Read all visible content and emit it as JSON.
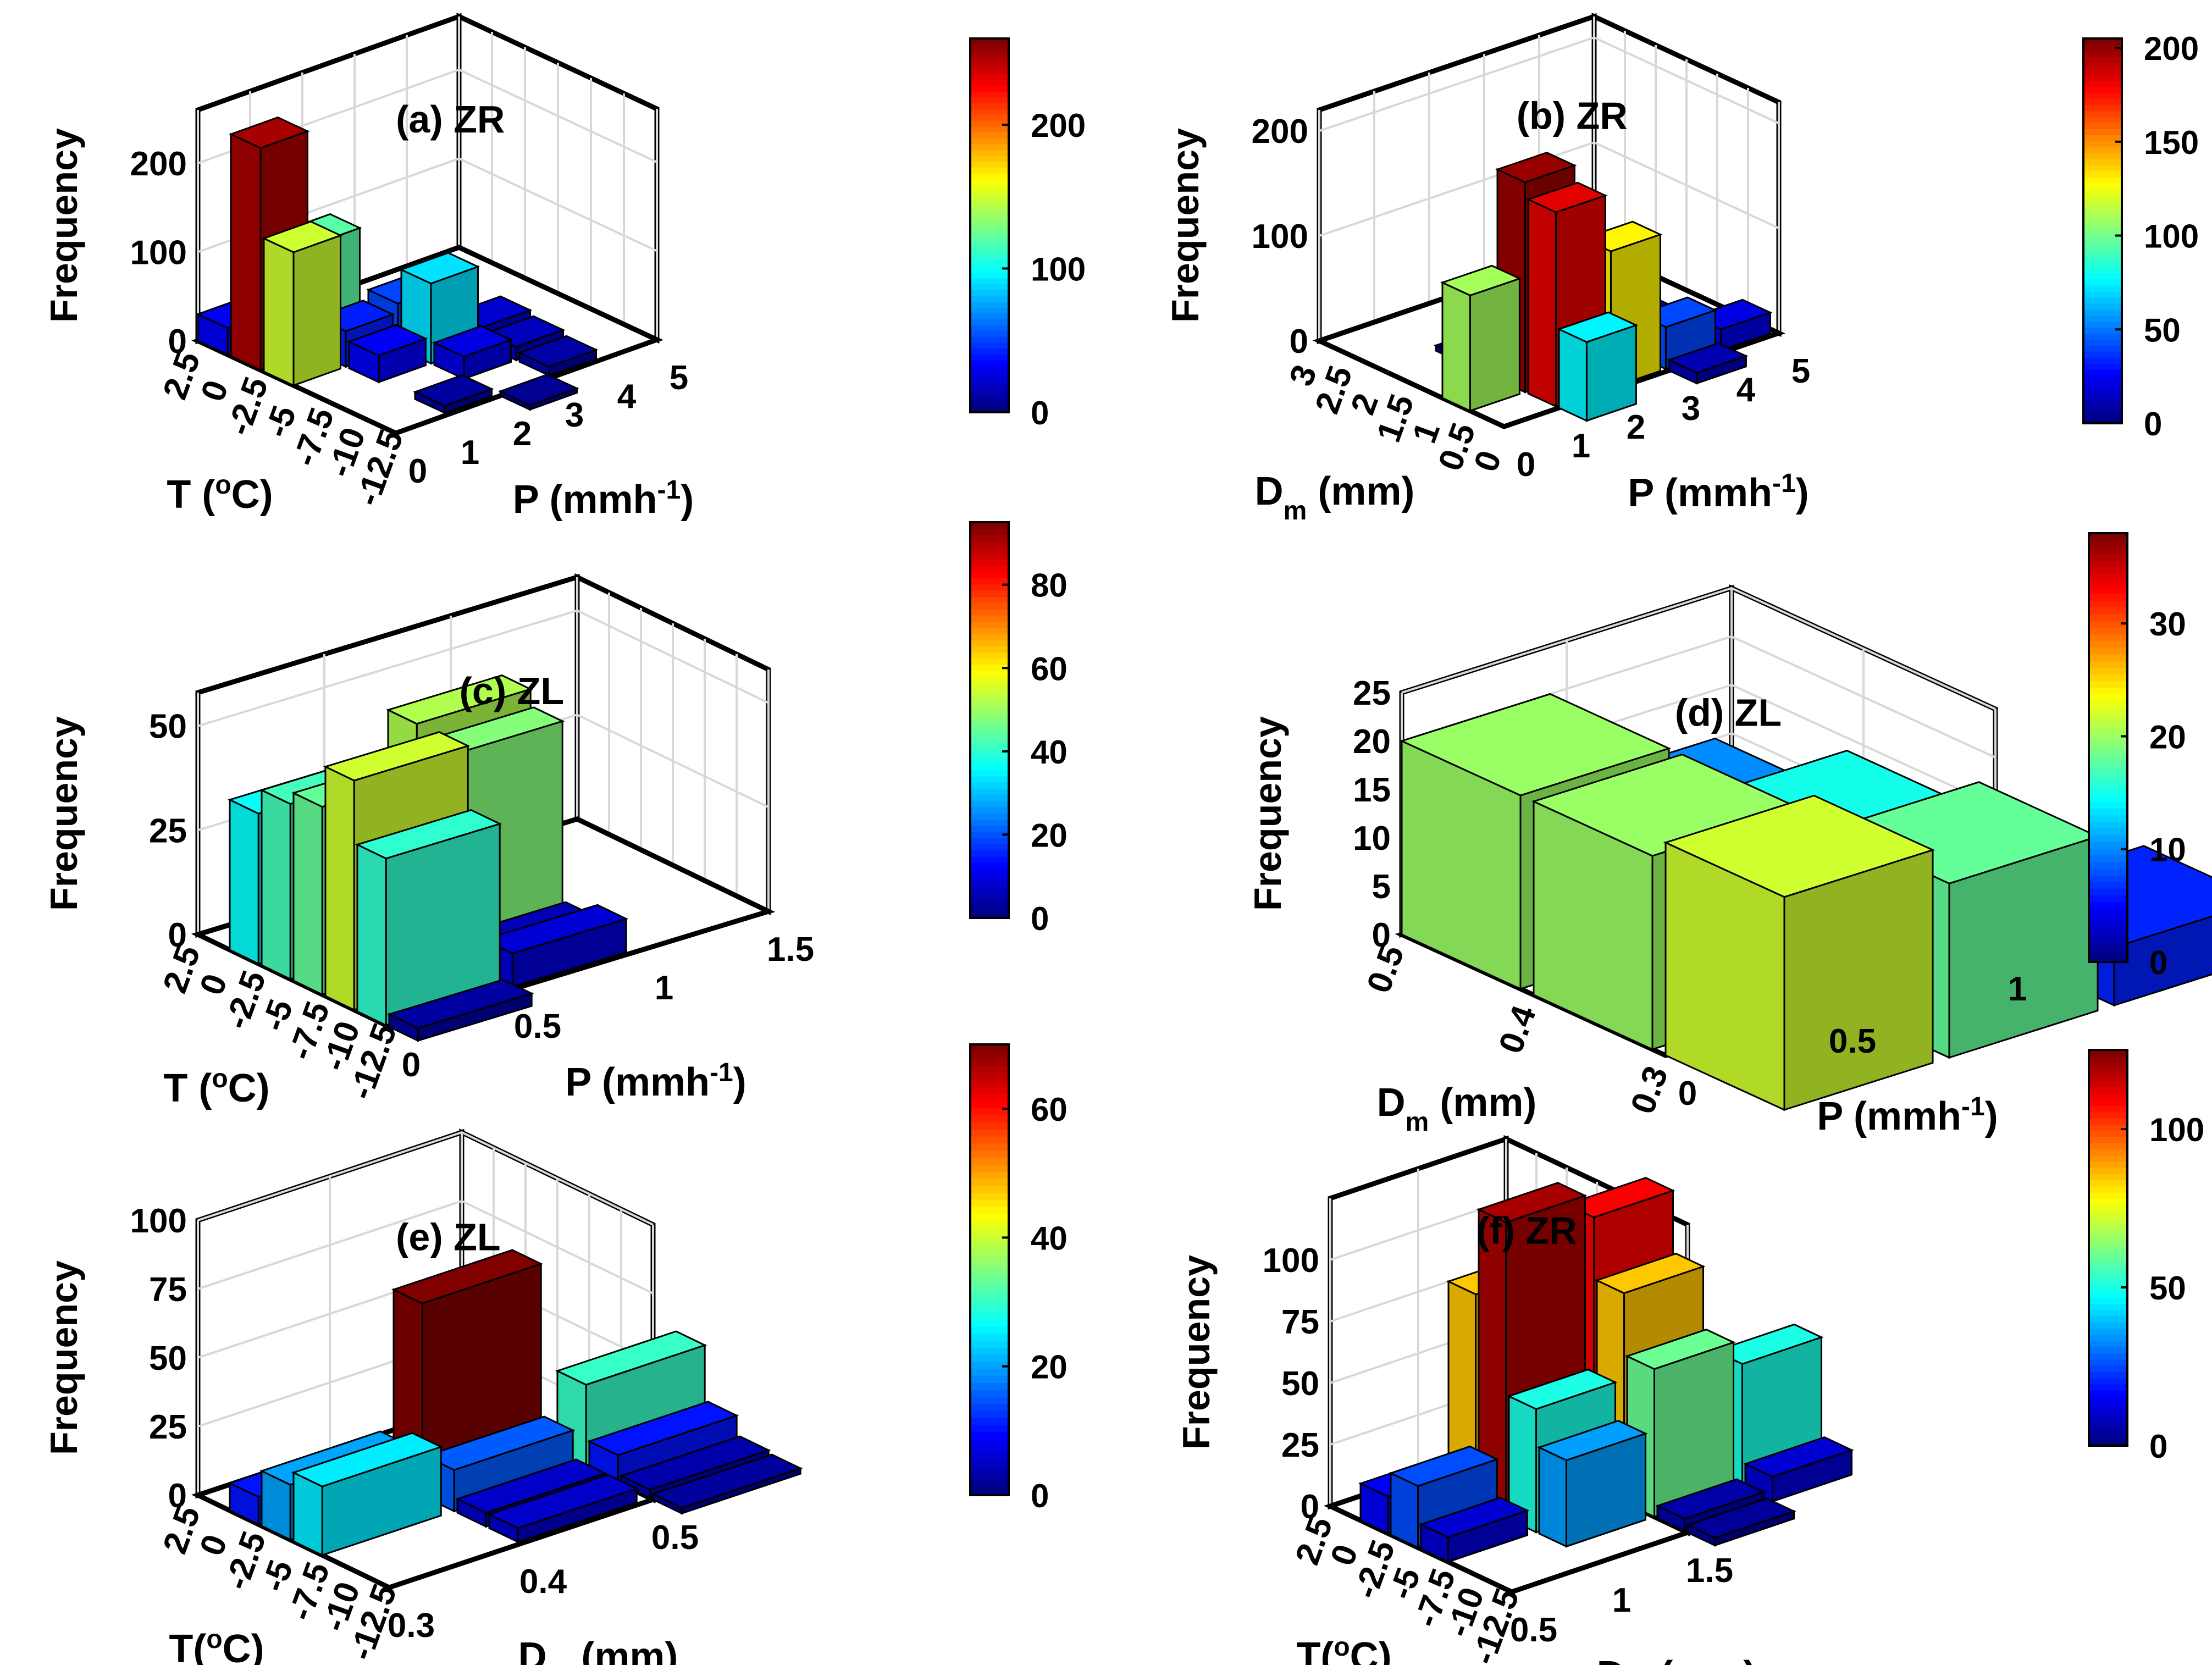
{
  "figure": {
    "description_panels": [
      "a",
      "b",
      "c",
      "d",
      "e",
      "f"
    ]
  },
  "chart_data": [
    {
      "id": "a",
      "type": "bar3d",
      "title": "(a) ZR",
      "zlabel": "Frequency",
      "xlabel": "T (°C)",
      "ylabel": "P (mmh-1)",
      "x_unit_main": "T (",
      "x_unit_sup": "o",
      "x_unit_end": "C)",
      "y_unit_main": "P (mmh",
      "y_unit_sup": "-1",
      "y_unit_end": ")",
      "x_ticks": [
        "2.5",
        "0",
        "-2.5",
        "-5",
        "-7.5",
        "-10",
        "-12.5"
      ],
      "y_ticks": [
        "0",
        "1",
        "2",
        "3",
        "4",
        "5"
      ],
      "z_ticks": [
        "0",
        "100",
        "200"
      ],
      "zlim": [
        0,
        260
      ],
      "colorbar": {
        "ticks": [
          "0",
          "100",
          "200"
        ],
        "max": 260
      },
      "bars": [
        {
          "xi": 0,
          "yi": 0,
          "z": 30
        },
        {
          "xi": 1,
          "yi": 0,
          "z": 250
        },
        {
          "xi": 2,
          "yi": 0,
          "z": 150
        },
        {
          "xi": 1,
          "yi": 1,
          "z": 120
        },
        {
          "xi": 2,
          "yi": 1,
          "z": 40
        },
        {
          "xi": 3,
          "yi": 1,
          "z": 30
        },
        {
          "xi": 2,
          "yi": 2,
          "z": 50
        },
        {
          "xi": 3,
          "yi": 2,
          "z": 90
        },
        {
          "xi": 3,
          "yi": 3,
          "z": 20
        },
        {
          "xi": 4,
          "yi": 2,
          "z": 25
        },
        {
          "xi": 4,
          "yi": 3,
          "z": 15
        },
        {
          "xi": 5,
          "yi": 1,
          "z": 8
        },
        {
          "xi": 5,
          "yi": 3,
          "z": 10
        },
        {
          "xi": 6,
          "yi": 2,
          "z": 5
        }
      ]
    },
    {
      "id": "b",
      "type": "bar3d",
      "title": "(b) ZR",
      "zlabel": "Frequency",
      "xlabel": "Dm (mm)",
      "ylabel": "P (mmh-1)",
      "x_unit_main": "D",
      "x_unit_sub": "m",
      "x_unit_end": " (mm)",
      "y_unit_main": "P (mmh",
      "y_unit_sup": "-1",
      "y_unit_end": ")",
      "x_ticks": [
        "3",
        "2.5",
        "2",
        "1.5",
        "1",
        "0.5",
        "0"
      ],
      "y_ticks": [
        "0",
        "1",
        "2",
        "3",
        "4",
        "5"
      ],
      "z_ticks": [
        "0",
        "100",
        "200"
      ],
      "zlim": [
        0,
        220
      ],
      "colorbar": {
        "ticks": [
          "0",
          "50",
          "100",
          "150",
          "200"
        ],
        "max": 205
      },
      "bars": [
        {
          "xi": 4,
          "yi": 0,
          "z": 110
        },
        {
          "xi": 4,
          "yi": 1,
          "z": 200
        },
        {
          "xi": 5,
          "yi": 1,
          "z": 185
        },
        {
          "xi": 5,
          "yi": 2,
          "z": 130
        },
        {
          "xi": 6,
          "yi": 1,
          "z": 75
        },
        {
          "xi": 5,
          "yi": 3,
          "z": 40
        },
        {
          "xi": 4,
          "yi": 3,
          "z": 25
        },
        {
          "xi": 3,
          "yi": 2,
          "z": 10
        },
        {
          "xi": 2,
          "yi": 1,
          "z": 5
        },
        {
          "xi": 5,
          "yi": 4,
          "z": 20
        },
        {
          "xi": 6,
          "yi": 3,
          "z": 10
        }
      ]
    },
    {
      "id": "c",
      "type": "bar3d",
      "title": "(c) ZL",
      "zlabel": "Frequency",
      "xlabel": "T (°C)",
      "ylabel": "P (mmh-1)",
      "x_unit_main": "T (",
      "x_unit_sup": "o",
      "x_unit_end": "C)",
      "y_unit_main": "P (mmh",
      "y_unit_sup": "-1",
      "y_unit_end": ")",
      "x_ticks": [
        "2.5",
        "0",
        "-2.5",
        "-5",
        "-7.5",
        "-10",
        "-12.5"
      ],
      "y_ticks": [
        "0",
        "0.5",
        "1",
        "1.5"
      ],
      "z_ticks": [
        "0",
        "25",
        "50"
      ],
      "zlim": [
        0,
        58
      ],
      "colorbar": {
        "ticks": [
          "0",
          "20",
          "40",
          "60",
          "80"
        ],
        "max": 95
      },
      "bars": [
        {
          "xi": 1,
          "yi": 0,
          "z": 36
        },
        {
          "xi": 2,
          "yi": 0,
          "z": 42
        },
        {
          "xi": 2,
          "yi": 1,
          "z": 52
        },
        {
          "xi": 3,
          "yi": 0,
          "z": 45
        },
        {
          "xi": 3,
          "yi": 1,
          "z": 48
        },
        {
          "xi": 4,
          "yi": 0,
          "z": 55
        },
        {
          "xi": 5,
          "yi": 0,
          "z": 40
        },
        {
          "xi": 5,
          "yi": 1,
          "z": 8
        },
        {
          "xi": 6,
          "yi": 0,
          "z": 3
        },
        {
          "xi": 4,
          "yi": 1,
          "z": 5
        }
      ]
    },
    {
      "id": "d",
      "type": "bar3d",
      "title": "(d) ZL",
      "zlabel": "Frequency",
      "xlabel": "Dm (mm)",
      "ylabel": "P (mmh-1)",
      "x_unit_main": "D",
      "x_unit_sub": "m",
      "x_unit_end": " (mm)",
      "y_unit_main": "P (mmh",
      "y_unit_sup": "-1",
      "y_unit_end": ")",
      "x_ticks": [
        "0.5",
        "0.4",
        "0.3"
      ],
      "y_ticks": [
        "0",
        "0.5",
        "1"
      ],
      "z_ticks": [
        "0",
        "5",
        "10",
        "15",
        "20",
        "25"
      ],
      "zlim": [
        0,
        25
      ],
      "colorbar": {
        "ticks": [
          "0",
          "10",
          "20",
          "30"
        ],
        "max": 38
      },
      "bars": [
        {
          "xi": 0,
          "yi": 0,
          "z": 20
        },
        {
          "xi": 0,
          "yi": 1,
          "z": 10
        },
        {
          "xi": 1,
          "yi": 0,
          "z": 20
        },
        {
          "xi": 1,
          "yi": 1,
          "z": 15
        },
        {
          "xi": 2,
          "yi": 0,
          "z": 22
        },
        {
          "xi": 2,
          "yi": 1,
          "z": 18
        },
        {
          "xi": 2,
          "yi": 2,
          "z": 6
        },
        {
          "xi": 1,
          "yi": 2,
          "z": 3
        }
      ]
    },
    {
      "id": "e",
      "type": "bar3d",
      "title": "(e) ZL",
      "zlabel": "Frequency",
      "xlabel": "T(°C)",
      "ylabel": "Dm (mm)",
      "x_unit_main": "T(",
      "x_unit_sup": "o",
      "x_unit_end": "C)",
      "y_unit_main": "D",
      "y_unit_sub": "m",
      "y_unit_end": " (mm)",
      "x_ticks": [
        "2.5",
        "0",
        "-2.5",
        "-5",
        "-7.5",
        "-10",
        "-12.5"
      ],
      "y_ticks": [
        "0.3",
        "0.4",
        "0.5"
      ],
      "z_ticks": [
        "0",
        "25",
        "50",
        "75",
        "100"
      ],
      "zlim": [
        0,
        100
      ],
      "colorbar": {
        "ticks": [
          "0",
          "20",
          "40",
          "60"
        ],
        "max": 70
      },
      "bars": [
        {
          "xi": 1,
          "yi": 0,
          "z": 10
        },
        {
          "xi": 2,
          "yi": 0,
          "z": 20
        },
        {
          "xi": 2,
          "yi": 1,
          "z": 70
        },
        {
          "xi": 3,
          "yi": 1,
          "z": 15
        },
        {
          "xi": 3,
          "yi": 0,
          "z": 25
        },
        {
          "xi": 3,
          "yi": 2,
          "z": 30
        },
        {
          "xi": 4,
          "yi": 1,
          "z": 5
        },
        {
          "xi": 4,
          "yi": 2,
          "z": 10
        },
        {
          "xi": 5,
          "yi": 2,
          "z": 3
        },
        {
          "xi": 5,
          "yi": 1,
          "z": 5
        },
        {
          "xi": 6,
          "yi": 2,
          "z": 2
        }
      ]
    },
    {
      "id": "f",
      "type": "bar3d",
      "title": "(f) ZR",
      "zlabel": "Frequency",
      "xlabel": "T(°C)",
      "ylabel": "Dm (mm)",
      "x_unit_main": "T(",
      "x_unit_sup": "o",
      "x_unit_end": "C)",
      "y_unit_main": "D",
      "y_unit_sub": "m",
      "y_unit_end": " (mm)",
      "x_ticks": [
        "2.5",
        "0",
        "-2.5",
        "-5",
        "-7.5",
        "-10",
        "-12.5"
      ],
      "y_ticks": [
        "0.5",
        "1",
        "1.5"
      ],
      "z_ticks": [
        "0",
        "25",
        "50",
        "75",
        "100"
      ],
      "zlim": [
        0,
        125
      ],
      "colorbar": {
        "ticks": [
          "0",
          "50",
          "100"
        ],
        "max": 125
      },
      "bars": [
        {
          "xi": 1,
          "yi": 0,
          "z": 15
        },
        {
          "xi": 1,
          "yi": 1,
          "z": 85
        },
        {
          "xi": 2,
          "yi": 1,
          "z": 120
        },
        {
          "xi": 2,
          "yi": 2,
          "z": 110
        },
        {
          "xi": 2,
          "yi": 0,
          "z": 25
        },
        {
          "xi": 3,
          "yi": 1,
          "z": 50
        },
        {
          "xi": 3,
          "yi": 2,
          "z": 85
        },
        {
          "xi": 3,
          "yi": 0,
          "z": 10
        },
        {
          "xi": 4,
          "yi": 1,
          "z": 35
        },
        {
          "xi": 4,
          "yi": 2,
          "z": 60
        },
        {
          "xi": 4,
          "yi": 3,
          "z": 50
        },
        {
          "xi": 5,
          "yi": 2,
          "z": 5
        },
        {
          "xi": 5,
          "yi": 3,
          "z": 10
        },
        {
          "xi": 6,
          "yi": 2,
          "z": 3
        }
      ]
    }
  ]
}
